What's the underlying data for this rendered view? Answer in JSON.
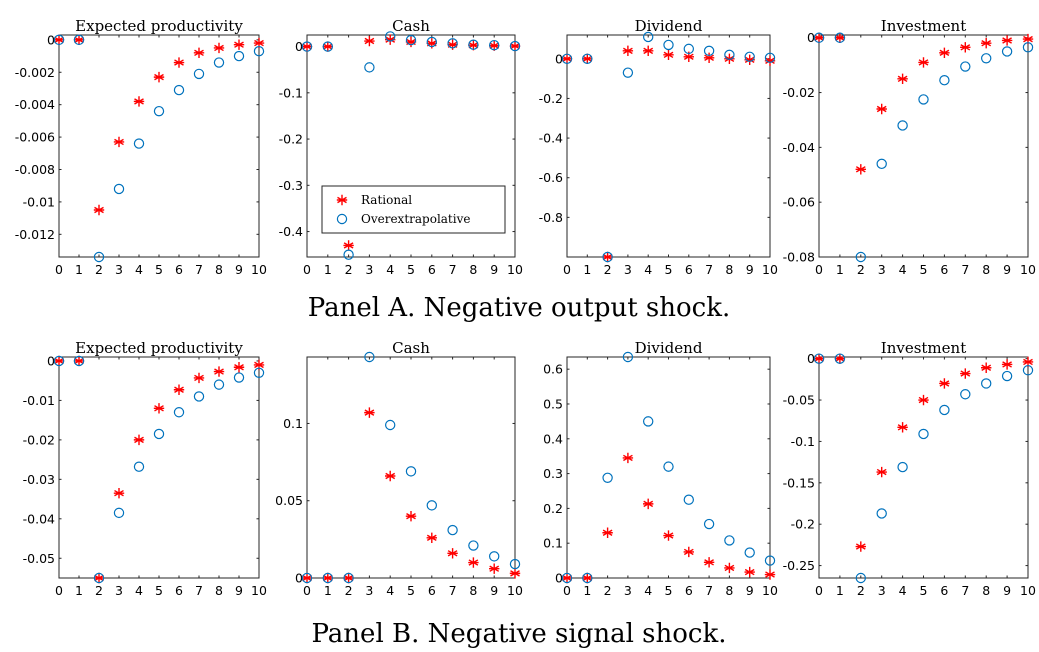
{
  "figure": {
    "captions": [
      "Panel A. Negative output shock.",
      "Panel B. Negative signal shock."
    ]
  },
  "legend": {
    "entries": [
      {
        "label": "Rational",
        "marker": "asterisk",
        "color": "#ff0000"
      },
      {
        "label": "Overextrapolative",
        "marker": "circle",
        "color": "#0072bd"
      }
    ],
    "placement": "inside Panel A Cash plot, lower-left"
  },
  "chart_data": [
    {
      "type": "scatter",
      "panel": "A",
      "title": "Expected productivity",
      "x": [
        0,
        1,
        2,
        3,
        4,
        5,
        6,
        7,
        8,
        9,
        10
      ],
      "xlim": [
        0,
        10
      ],
      "xticks": [
        0,
        1,
        2,
        3,
        4,
        5,
        6,
        7,
        8,
        9,
        10
      ],
      "ylim": [
        -0.0134,
        0.0003
      ],
      "yticks": [
        0,
        -0.002,
        -0.004,
        -0.006,
        -0.008,
        -0.01,
        -0.012
      ],
      "ytick_labels": [
        "0",
        "-0.002",
        "-0.004",
        "-0.006",
        "-0.008",
        "-0.01",
        "-0.012"
      ],
      "series": [
        {
          "name": "Rational",
          "values": [
            0,
            0,
            -0.0105,
            -0.0063,
            -0.0038,
            -0.0023,
            -0.0014,
            -0.0008,
            -0.0005,
            -0.0003,
            -0.0002
          ]
        },
        {
          "name": "Overextrapolative",
          "values": [
            0,
            0,
            -0.0134,
            -0.0092,
            -0.0064,
            -0.0044,
            -0.0031,
            -0.0021,
            -0.0014,
            -0.001,
            -0.0007
          ]
        }
      ]
    },
    {
      "type": "scatter",
      "panel": "A",
      "title": "Cash",
      "x": [
        0,
        1,
        2,
        3,
        4,
        5,
        6,
        7,
        8,
        9,
        10
      ],
      "xlim": [
        0,
        10
      ],
      "xticks": [
        0,
        1,
        2,
        3,
        4,
        5,
        6,
        7,
        8,
        9,
        10
      ],
      "ylim": [
        -0.455,
        0.025
      ],
      "yticks": [
        0,
        -0.1,
        -0.2,
        -0.3,
        -0.4
      ],
      "ytick_labels": [
        "0",
        "-0.1",
        "-0.2",
        "-0.3",
        "-0.4"
      ],
      "series": [
        {
          "name": "Rational",
          "values": [
            0,
            0,
            -0.43,
            0.012,
            0.015,
            0.01,
            0.007,
            0.004,
            0.003,
            0.002,
            0.001
          ]
        },
        {
          "name": "Overextrapolative",
          "values": [
            0,
            0,
            -0.45,
            -0.045,
            0.022,
            0.014,
            0.01,
            0.007,
            0.004,
            0.003,
            0.001
          ]
        }
      ]
    },
    {
      "type": "scatter",
      "panel": "A",
      "title": "Dividend",
      "x": [
        0,
        1,
        2,
        3,
        4,
        5,
        6,
        7,
        8,
        9,
        10
      ],
      "xlim": [
        0,
        10
      ],
      "xticks": [
        0,
        1,
        2,
        3,
        4,
        5,
        6,
        7,
        8,
        9,
        10
      ],
      "ylim": [
        -1.0,
        0.12
      ],
      "yticks": [
        0,
        -0.2,
        -0.4,
        -0.6,
        -0.8
      ],
      "ytick_labels": [
        "0",
        "-0.2",
        "-0.4",
        "-0.6",
        "-0.8"
      ],
      "series": [
        {
          "name": "Rational",
          "values": [
            0,
            0,
            -1.0,
            0.04,
            0.04,
            0.02,
            0.01,
            0.005,
            0.0,
            -0.005,
            -0.01
          ]
        },
        {
          "name": "Overextrapolative",
          "values": [
            0,
            0,
            -1.0,
            -0.07,
            0.11,
            0.07,
            0.05,
            0.04,
            0.02,
            0.01,
            0.005
          ]
        }
      ]
    },
    {
      "type": "scatter",
      "panel": "A",
      "title": "Investment",
      "x": [
        0,
        1,
        2,
        3,
        4,
        5,
        6,
        7,
        8,
        9,
        10
      ],
      "xlim": [
        0,
        10
      ],
      "xticks": [
        0,
        1,
        2,
        3,
        4,
        5,
        6,
        7,
        8,
        9,
        10
      ],
      "ylim": [
        -0.08,
        0.001
      ],
      "yticks": [
        0,
        -0.02,
        -0.04,
        -0.06,
        -0.08
      ],
      "ytick_labels": [
        "0",
        "-0.02",
        "-0.04",
        "-0.06",
        "-0.08"
      ],
      "series": [
        {
          "name": "Rational",
          "values": [
            0,
            0,
            -0.048,
            -0.026,
            -0.015,
            -0.009,
            -0.0055,
            -0.0035,
            -0.002,
            -0.001,
            -0.0005
          ]
        },
        {
          "name": "Overextrapolative",
          "values": [
            0,
            0,
            -0.08,
            -0.046,
            -0.032,
            -0.0225,
            -0.0155,
            -0.0105,
            -0.0075,
            -0.005,
            -0.0035
          ]
        }
      ]
    },
    {
      "type": "scatter",
      "panel": "B",
      "title": "Expected productivity",
      "x": [
        0,
        1,
        2,
        3,
        4,
        5,
        6,
        7,
        8,
        9,
        10
      ],
      "xlim": [
        0,
        10
      ],
      "xticks": [
        0,
        1,
        2,
        3,
        4,
        5,
        6,
        7,
        8,
        9,
        10
      ],
      "ylim": [
        -0.055,
        0.001
      ],
      "yticks": [
        0,
        -0.01,
        -0.02,
        -0.03,
        -0.04,
        -0.05
      ],
      "ytick_labels": [
        "0",
        "-0.01",
        "-0.02",
        "-0.03",
        "-0.04",
        "-0.05"
      ],
      "series": [
        {
          "name": "Rational",
          "values": [
            0,
            0,
            -0.055,
            -0.0335,
            -0.02,
            -0.012,
            -0.0073,
            -0.0043,
            -0.0027,
            -0.0016,
            -0.001
          ]
        },
        {
          "name": "Overextrapolative",
          "values": [
            0,
            0,
            -0.055,
            -0.0385,
            -0.0268,
            -0.0185,
            -0.013,
            -0.009,
            -0.006,
            -0.0042,
            -0.003
          ]
        }
      ]
    },
    {
      "type": "scatter",
      "panel": "B",
      "title": "Cash",
      "x": [
        0,
        1,
        2,
        3,
        4,
        5,
        6,
        7,
        8,
        9,
        10
      ],
      "xlim": [
        0,
        10
      ],
      "xticks": [
        0,
        1,
        2,
        3,
        4,
        5,
        6,
        7,
        8,
        9,
        10
      ],
      "ylim": [
        0,
        0.143
      ],
      "yticks": [
        0,
        0.05,
        0.1
      ],
      "ytick_labels": [
        "0",
        "0.05",
        "0.1"
      ],
      "series": [
        {
          "name": "Rational",
          "values": [
            0,
            0,
            0,
            0.107,
            0.066,
            0.04,
            0.026,
            0.016,
            0.01,
            0.006,
            0.003
          ]
        },
        {
          "name": "Overextrapolative",
          "values": [
            0,
            0,
            0,
            0.143,
            0.099,
            0.069,
            0.047,
            0.031,
            0.021,
            0.014,
            0.009
          ]
        }
      ]
    },
    {
      "type": "scatter",
      "panel": "B",
      "title": "Dividend",
      "x": [
        0,
        1,
        2,
        3,
        4,
        5,
        6,
        7,
        8,
        9,
        10
      ],
      "xlim": [
        0,
        10
      ],
      "xticks": [
        0,
        1,
        2,
        3,
        4,
        5,
        6,
        7,
        8,
        9,
        10
      ],
      "ylim": [
        0,
        0.635
      ],
      "yticks": [
        0,
        0.1,
        0.2,
        0.3,
        0.4,
        0.5,
        0.6
      ],
      "ytick_labels": [
        "0",
        "0.1",
        "0.2",
        "0.3",
        "0.4",
        "0.5",
        "0.6"
      ],
      "series": [
        {
          "name": "Rational",
          "values": [
            0,
            0,
            0.13,
            0.345,
            0.213,
            0.122,
            0.075,
            0.045,
            0.029,
            0.017,
            0.01
          ]
        },
        {
          "name": "Overextrapolative",
          "values": [
            0,
            0,
            0.288,
            0.635,
            0.45,
            0.32,
            0.225,
            0.155,
            0.108,
            0.073,
            0.05
          ]
        }
      ]
    },
    {
      "type": "scatter",
      "panel": "B",
      "title": "Investment",
      "x": [
        0,
        1,
        2,
        3,
        4,
        5,
        6,
        7,
        8,
        9,
        10
      ],
      "xlim": [
        0,
        10
      ],
      "xticks": [
        0,
        1,
        2,
        3,
        4,
        5,
        6,
        7,
        8,
        9,
        10
      ],
      "ylim": [
        -0.265,
        0.002
      ],
      "yticks": [
        0,
        -0.05,
        -0.1,
        -0.15,
        -0.2,
        -0.25
      ],
      "ytick_labels": [
        "0",
        "-0.05",
        "-0.1",
        "-0.15",
        "-0.2",
        "-0.25"
      ],
      "series": [
        {
          "name": "Rational",
          "values": [
            0,
            0,
            -0.227,
            -0.137,
            -0.083,
            -0.05,
            -0.03,
            -0.018,
            -0.011,
            -0.007,
            -0.004
          ]
        },
        {
          "name": "Overextrapolative",
          "values": [
            0,
            0,
            -0.265,
            -0.187,
            -0.131,
            -0.091,
            -0.062,
            -0.043,
            -0.03,
            -0.021,
            -0.014
          ]
        }
      ]
    }
  ]
}
